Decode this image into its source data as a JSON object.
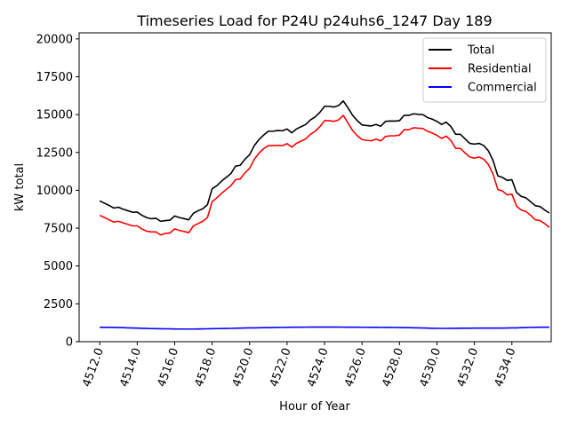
{
  "chart_data": {
    "type": "line",
    "title": "Timeseries Load for P24U p24uhs6_1247  Day 189",
    "xlabel": "Hour of Year",
    "ylabel": "kW total",
    "xlim": [
      4510.9,
      4536.1
    ],
    "ylim": [
      0,
      20400
    ],
    "x_ticks": [
      4512,
      4514,
      4516,
      4518,
      4520,
      4522,
      4524,
      4526,
      4528,
      4530,
      4532,
      4534
    ],
    "x_tick_labels": [
      "4512.0",
      "4514.0",
      "4516.0",
      "4518.0",
      "4520.0",
      "4522.0",
      "4524.0",
      "4526.0",
      "4528.0",
      "4530.0",
      "4532.0",
      "4534.0"
    ],
    "y_ticks": [
      0,
      2500,
      5000,
      7500,
      10000,
      12500,
      15000,
      17500,
      20000
    ],
    "y_tick_labels": [
      "0",
      "2500",
      "5000",
      "7500",
      "10000",
      "12500",
      "15000",
      "17500",
      "20000"
    ],
    "legend_position": "top-right",
    "x_start": 4512,
    "x_step": 0.25,
    "series": [
      {
        "name": "Total",
        "color": "#000000",
        "values": [
          9300,
          9150,
          9000,
          8830,
          8880,
          8750,
          8650,
          8550,
          8560,
          8350,
          8200,
          8120,
          8150,
          7950,
          8000,
          8030,
          8300,
          8200,
          8130,
          8050,
          8480,
          8650,
          8780,
          9050,
          10100,
          10300,
          10600,
          10850,
          11100,
          11600,
          11650,
          12050,
          12350,
          12950,
          13350,
          13650,
          13900,
          13900,
          13950,
          13930,
          14050,
          13800,
          14050,
          14200,
          14350,
          14650,
          14850,
          15150,
          15550,
          15550,
          15500,
          15600,
          15900,
          15450,
          14950,
          14600,
          14320,
          14280,
          14250,
          14350,
          14230,
          14550,
          14580,
          14570,
          14600,
          14950,
          14950,
          15050,
          15020,
          15000,
          14800,
          14700,
          14550,
          14350,
          14500,
          14200,
          13700,
          13700,
          13400,
          13100,
          13050,
          13100,
          12950,
          12600,
          11950,
          10950,
          10850,
          10650,
          10700,
          9850,
          9600,
          9500,
          9250,
          8980,
          8930,
          8700,
          8500
        ]
      },
      {
        "name": "Residential",
        "color": "#ff0000",
        "values": [
          8350,
          8200,
          8050,
          7900,
          7950,
          7850,
          7750,
          7650,
          7650,
          7450,
          7300,
          7250,
          7250,
          7050,
          7150,
          7180,
          7450,
          7350,
          7280,
          7200,
          7650,
          7800,
          7950,
          8200,
          9250,
          9500,
          9800,
          10050,
          10300,
          10700,
          10750,
          11150,
          11450,
          12050,
          12450,
          12750,
          12950,
          12950,
          12970,
          12950,
          13080,
          12850,
          13100,
          13250,
          13400,
          13700,
          13900,
          14200,
          14600,
          14600,
          14550,
          14650,
          14950,
          14450,
          13950,
          13600,
          13350,
          13300,
          13270,
          13380,
          13260,
          13550,
          13600,
          13600,
          13650,
          14000,
          14000,
          14130,
          14100,
          14080,
          13900,
          13780,
          13630,
          13430,
          13580,
          13280,
          12770,
          12770,
          12470,
          12200,
          12120,
          12200,
          12050,
          11700,
          11050,
          10050,
          9950,
          9700,
          9750,
          8950,
          8700,
          8600,
          8350,
          8050,
          8000,
          7800,
          7550
        ]
      },
      {
        "name": "Commercial",
        "color": "#0000ff",
        "values": [
          950,
          950,
          950,
          940,
          935,
          925,
          915,
          905,
          895,
          885,
          875,
          865,
          860,
          855,
          850,
          845,
          840,
          835,
          835,
          835,
          835,
          840,
          845,
          850,
          860,
          865,
          870,
          875,
          880,
          890,
          900,
          905,
          910,
          915,
          920,
          925,
          930,
          935,
          940,
          945,
          950,
          955,
          955,
          958,
          960,
          962,
          965,
          965,
          965,
          965,
          965,
          962,
          960,
          958,
          956,
          955,
          953,
          952,
          950,
          948,
          945,
          942,
          940,
          938,
          935,
          930,
          925,
          920,
          915,
          905,
          895,
          885,
          880,
          880,
          880,
          882,
          885,
          888,
          890,
          892,
          895,
          895,
          895,
          895,
          895,
          897,
          900,
          905,
          910,
          915,
          925,
          935,
          945,
          950,
          955,
          955,
          955
        ]
      }
    ]
  }
}
